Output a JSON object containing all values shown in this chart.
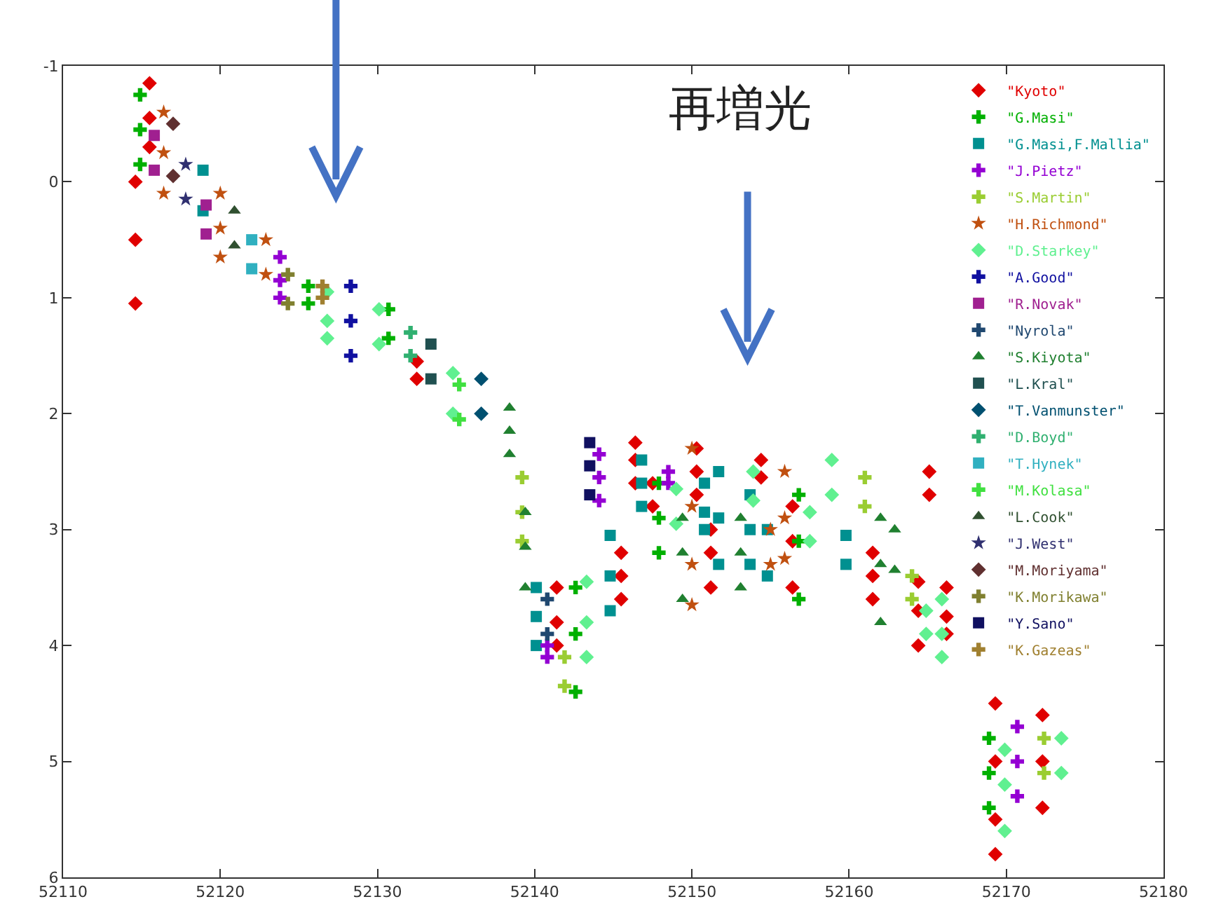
{
  "chart_data": {
    "type": "scatter",
    "xlim": [
      52110,
      52180
    ],
    "xticks": [
      52110,
      52120,
      52130,
      52140,
      52150,
      52160,
      52170,
      52180
    ],
    "ylim": [
      6,
      -1
    ],
    "yticks": [
      -1,
      0,
      1,
      2,
      3,
      4,
      5,
      6
    ],
    "legend": "top right",
    "annotations": [
      "再増光"
    ],
    "series": [
      {
        "name": "\"Kyoto\"",
        "color": "#e00000",
        "marker": "diamond",
        "x": [
          52114.6,
          52114.6,
          52114.6,
          52115.5,
          52115.5,
          52115.5,
          52132.5,
          52132.5,
          52141.4,
          52141.4,
          52141.4,
          52145.5,
          52145.5,
          52145.5,
          52146.4,
          52146.4,
          52146.4,
          52147.5,
          52147.5,
          52150.3,
          52150.3,
          52150.3,
          52151.2,
          52151.2,
          52151.2,
          52154.4,
          52154.4,
          52156.4,
          52156.4,
          52156.4,
          52161.5,
          52161.5,
          52161.5,
          52164.4,
          52164.4,
          52164.4,
          52165.1,
          52165.1,
          52166.2,
          52166.2,
          52166.2,
          52169.3,
          52169.3,
          52169.3,
          52169.3,
          52172.3,
          52172.3,
          52172.3
        ],
        "values": [
          0.0,
          0.5,
          1.05,
          -0.85,
          -0.55,
          -0.3,
          1.55,
          1.7,
          3.5,
          3.8,
          4.0,
          3.2,
          3.4,
          3.6,
          2.25,
          2.4,
          2.6,
          2.6,
          2.8,
          2.3,
          2.5,
          2.7,
          3.0,
          3.2,
          3.5,
          2.4,
          2.55,
          2.8,
          3.1,
          3.5,
          3.2,
          3.4,
          3.6,
          3.45,
          3.7,
          4.0,
          2.5,
          2.7,
          3.5,
          3.75,
          3.9,
          4.5,
          5.0,
          5.5,
          5.8,
          4.6,
          5.0,
          5.4
        ]
      },
      {
        "name": "\"G.Masi\"",
        "color": "#00b000",
        "marker": "cross",
        "x": [
          52114.9,
          52114.9,
          52114.9,
          52125.6,
          52125.6,
          52130.7,
          52130.7,
          52142.6,
          52142.6,
          52142.6,
          52147.9,
          52147.9,
          52147.9,
          52156.8,
          52156.8,
          52156.8,
          52168.9,
          52168.9,
          52168.9
        ],
        "values": [
          -0.75,
          -0.45,
          -0.15,
          0.9,
          1.05,
          1.1,
          1.35,
          3.5,
          3.9,
          4.4,
          2.6,
          2.9,
          3.2,
          2.7,
          3.1,
          3.6,
          4.8,
          5.1,
          5.4
        ]
      },
      {
        "name": "\"G.Masi,F.Mallia\"",
        "color": "#009090",
        "marker": "square",
        "x": [
          52118.9,
          52118.9,
          52140.1,
          52140.1,
          52140.1,
          52144.8,
          52144.8,
          52144.8,
          52146.8,
          52146.8,
          52146.8,
          52150.8,
          52150.8,
          52150.8,
          52151.7,
          52151.7,
          52151.7,
          52153.7,
          52153.7,
          52153.7,
          52154.8,
          52154.8,
          52159.8,
          52159.8
        ],
        "values": [
          -0.1,
          0.25,
          3.5,
          3.75,
          4.0,
          3.05,
          3.4,
          3.7,
          2.4,
          2.6,
          2.8,
          2.6,
          2.85,
          3.0,
          2.5,
          2.9,
          3.3,
          2.7,
          3.0,
          3.3,
          3.0,
          3.4,
          3.05,
          3.3
        ]
      },
      {
        "name": "\"J.Pietz\"",
        "color": "#9400d3",
        "marker": "cross",
        "x": [
          52123.8,
          52123.8,
          52123.8,
          52140.8,
          52140.8,
          52144.1,
          52144.1,
          52144.1,
          52148.5,
          52148.5,
          52170.7,
          52170.7,
          52170.7
        ],
        "values": [
          0.65,
          0.85,
          1.0,
          4.0,
          4.1,
          2.35,
          2.55,
          2.75,
          2.5,
          2.6,
          4.7,
          5.0,
          5.3
        ]
      },
      {
        "name": "\"S.Martin\"",
        "color": "#9acd32",
        "marker": "cross",
        "x": [
          52139.2,
          52139.2,
          52139.2,
          52141.9,
          52141.9,
          52161.0,
          52161.0,
          52164.0,
          52164.0,
          52172.4,
          52172.4
        ],
        "values": [
          2.55,
          2.85,
          3.1,
          4.1,
          4.35,
          2.55,
          2.8,
          3.4,
          3.6,
          4.8,
          5.1
        ]
      },
      {
        "name": "\"H.Richmond\"",
        "color": "#c05010",
        "marker": "star",
        "x": [
          52116.4,
          52116.4,
          52116.4,
          52120.0,
          52120.0,
          52120.0,
          52122.9,
          52122.9,
          52150.0,
          52150.0,
          52150.0,
          52150.0,
          52155.0,
          52155.0,
          52155.9,
          52155.9,
          52155.9
        ],
        "values": [
          -0.6,
          -0.25,
          0.1,
          0.1,
          0.4,
          0.65,
          0.5,
          0.8,
          2.3,
          2.8,
          3.3,
          3.65,
          3.0,
          3.3,
          2.5,
          2.9,
          3.25
        ]
      },
      {
        "name": "\"D.Starkey\"",
        "color": "#60f090",
        "marker": "diamond",
        "x": [
          52126.8,
          52126.8,
          52126.8,
          52130.1,
          52130.1,
          52134.8,
          52134.8,
          52143.3,
          52143.3,
          52143.3,
          52149.0,
          52149.0,
          52153.9,
          52153.9,
          52157.5,
          52157.5,
          52158.9,
          52158.9,
          52164.9,
          52164.9,
          52165.9,
          52165.9,
          52165.9,
          52169.9,
          52169.9,
          52169.9,
          52173.5,
          52173.5
        ],
        "values": [
          0.95,
          1.2,
          1.35,
          1.1,
          1.4,
          1.65,
          2.0,
          3.45,
          3.8,
          4.1,
          2.65,
          2.95,
          2.5,
          2.75,
          2.85,
          3.1,
          2.4,
          2.7,
          3.7,
          3.9,
          3.6,
          3.9,
          4.1,
          4.9,
          5.2,
          5.6,
          4.8,
          5.1
        ]
      },
      {
        "name": "\"A.Good\"",
        "color": "#1010a0",
        "marker": "cross",
        "x": [
          52128.3,
          52128.3,
          52128.3
        ],
        "values": [
          0.9,
          1.2,
          1.5
        ]
      },
      {
        "name": "\"R.Novak\"",
        "color": "#a02090",
        "marker": "square",
        "x": [
          52115.8,
          52115.8,
          52119.1,
          52119.1
        ],
        "values": [
          -0.4,
          -0.1,
          0.2,
          0.45
        ]
      },
      {
        "name": "\"Nyrola\"",
        "color": "#204870",
        "marker": "cross",
        "x": [
          52140.8,
          52140.8
        ],
        "values": [
          3.6,
          3.9
        ]
      },
      {
        "name": "\"S.Kiyota\"",
        "color": "#208030",
        "marker": "triangle",
        "x": [
          52138.4,
          52138.4,
          52138.4,
          52139.4,
          52139.4,
          52139.4,
          52149.4,
          52149.4,
          52149.4,
          52153.1,
          52153.1,
          52153.1,
          52162.0,
          52162.0,
          52162.0,
          52162.9,
          52162.9
        ],
        "values": [
          1.95,
          2.15,
          2.35,
          2.85,
          3.15,
          3.5,
          2.9,
          3.2,
          3.6,
          2.9,
          3.2,
          3.5,
          2.9,
          3.3,
          3.8,
          3.0,
          3.35
        ]
      },
      {
        "name": "\"L.Kral\"",
        "color": "#205050",
        "marker": "square",
        "x": [
          52133.4,
          52133.4
        ],
        "values": [
          1.4,
          1.7
        ]
      },
      {
        "name": "\"T.Vanmunster\"",
        "color": "#005070",
        "marker": "diamond",
        "x": [
          52136.6,
          52136.6
        ],
        "values": [
          1.7,
          2.0
        ]
      },
      {
        "name": "\"D.Boyd\"",
        "color": "#30b070",
        "marker": "cross",
        "x": [
          52132.1,
          52132.1
        ],
        "values": [
          1.3,
          1.5
        ]
      },
      {
        "name": "\"T.Hynek\"",
        "color": "#30b0c0",
        "marker": "square",
        "x": [
          52122.0,
          52122.0
        ],
        "values": [
          0.5,
          0.75
        ]
      },
      {
        "name": "\"M.Kolasa\"",
        "color": "#40e040",
        "marker": "cross",
        "x": [
          52135.2,
          52135.2
        ],
        "values": [
          1.75,
          2.05
        ]
      },
      {
        "name": "\"L.Cook\"",
        "color": "#305030",
        "marker": "triangle",
        "x": [
          52120.9,
          52120.9
        ],
        "values": [
          0.25,
          0.55
        ]
      },
      {
        "name": "\"J.West\"",
        "color": "#303070",
        "marker": "star",
        "x": [
          52117.8,
          52117.8
        ],
        "values": [
          -0.15,
          0.15
        ]
      },
      {
        "name": "\"M.Moriyama\"",
        "color": "#603030",
        "marker": "diamond",
        "x": [
          52117.0,
          52117.0
        ],
        "values": [
          -0.5,
          -0.05
        ]
      },
      {
        "name": "\"K.Morikawa\"",
        "color": "#808030",
        "marker": "cross",
        "x": [
          52124.3,
          52124.3
        ],
        "values": [
          0.8,
          1.05
        ]
      },
      {
        "name": "\"Y.Sano\"",
        "color": "#101060",
        "marker": "square",
        "x": [
          52143.5,
          52143.5,
          52143.5
        ],
        "values": [
          2.25,
          2.45,
          2.7
        ]
      },
      {
        "name": "\"K.Gazeas\"",
        "color": "#a08030",
        "marker": "cross",
        "x": [
          52126.5,
          52126.5
        ],
        "values": [
          0.9,
          1.0
        ]
      }
    ]
  }
}
